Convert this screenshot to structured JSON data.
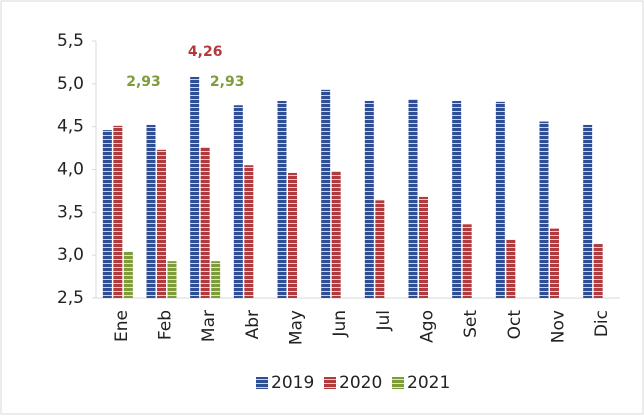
{
  "chart_data": {
    "type": "bar",
    "categories": [
      "Ene",
      "Feb",
      "Mar",
      "Abr",
      "May",
      "Jun",
      "Jul",
      "Ago",
      "Set",
      "Oct",
      "Nov",
      "Dic"
    ],
    "series": [
      {
        "name": "2019",
        "color": "#2e4f96",
        "values": [
          4.46,
          4.52,
          5.08,
          4.75,
          4.8,
          4.93,
          4.8,
          4.82,
          4.8,
          4.79,
          4.56,
          4.52
        ]
      },
      {
        "name": "2020",
        "color": "#b03a3e",
        "values": [
          4.51,
          4.23,
          4.26,
          4.05,
          3.96,
          3.98,
          3.64,
          3.68,
          3.36,
          3.18,
          3.31,
          3.13
        ],
        "value_labels": [
          null,
          null,
          "4,26",
          null,
          null,
          null,
          null,
          null,
          null,
          null,
          null,
          null
        ]
      },
      {
        "name": "2021",
        "color": "#7f9c3a",
        "values": [
          3.04,
          2.93,
          2.93,
          null,
          null,
          null,
          null,
          null,
          null,
          null,
          null,
          null
        ],
        "value_labels": [
          null,
          "2,93",
          "2,93",
          null,
          null,
          null,
          null,
          null,
          null,
          null,
          null,
          null
        ]
      }
    ],
    "ylim": [
      2.5,
      5.5
    ],
    "yticks": [
      {
        "value": 2.5,
        "label": "2,5"
      },
      {
        "value": 3.0,
        "label": "3,0"
      },
      {
        "value": 3.5,
        "label": "3,5"
      },
      {
        "value": 4.0,
        "label": "4,0"
      },
      {
        "value": 4.5,
        "label": "4,5"
      },
      {
        "value": 5.0,
        "label": "5,0"
      },
      {
        "value": 5.5,
        "label": "5,5"
      }
    ],
    "legend": "bottom"
  }
}
